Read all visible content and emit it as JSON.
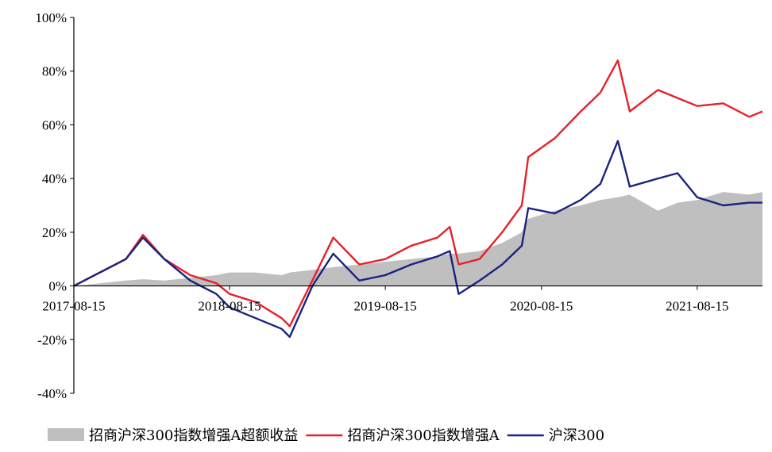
{
  "chart_data": {
    "type": "line",
    "title": "",
    "xlabel": "",
    "ylabel": "",
    "ylim": [
      -40,
      100
    ],
    "y_ticks": [
      -40,
      -20,
      0,
      20,
      40,
      60,
      80,
      100
    ],
    "y_tick_labels": [
      "-40%",
      "-20%",
      "0%",
      "20%",
      "40%",
      "60%",
      "80%",
      "100%"
    ],
    "x_tick_labels": [
      "2017-08-15",
      "2018-08-15",
      "2019-08-15",
      "2020-08-15",
      "2021-08-15"
    ],
    "x_range": [
      "2017-08-15",
      "2022-01-15"
    ],
    "grid": false,
    "legend_position": "bottom",
    "x": [
      "2017-08-15",
      "2017-10-15",
      "2017-12-15",
      "2018-01-24",
      "2018-03-15",
      "2018-05-15",
      "2018-07-15",
      "2018-08-15",
      "2018-10-15",
      "2018-12-15",
      "2019-01-03",
      "2019-02-25",
      "2019-04-15",
      "2019-06-15",
      "2019-08-15",
      "2019-10-15",
      "2019-12-15",
      "2020-01-13",
      "2020-02-03",
      "2020-03-23",
      "2020-05-15",
      "2020-06-30",
      "2020-07-15",
      "2020-09-15",
      "2020-11-15",
      "2020-12-31",
      "2021-02-10",
      "2021-03-10",
      "2021-05-15",
      "2021-06-30",
      "2021-08-15",
      "2021-10-15",
      "2021-12-15",
      "2022-01-15"
    ],
    "series": [
      {
        "name": "招商沪深300指数增强A超额收益",
        "type": "area",
        "color": "#bfbfbf",
        "values": [
          0,
          1,
          2,
          2.5,
          2,
          3,
          4,
          5,
          5,
          4,
          5,
          6,
          7,
          8,
          9,
          10,
          11,
          12,
          12,
          13,
          16,
          20,
          25,
          28,
          30,
          32,
          33,
          34,
          28,
          31,
          32,
          35,
          34,
          35
        ]
      },
      {
        "name": "招商沪深300指数增强A",
        "type": "line",
        "color": "#e8202a",
        "values": [
          0,
          5,
          10,
          19,
          10,
          4,
          1,
          -3,
          -6,
          -12,
          -15,
          2,
          18,
          8,
          10,
          15,
          18,
          22,
          8,
          10,
          20,
          30,
          48,
          55,
          65,
          72,
          84,
          65,
          73,
          70,
          67,
          68,
          63,
          65
        ]
      },
      {
        "name": "沪深300",
        "type": "line",
        "color": "#1a237e",
        "values": [
          0,
          5,
          10,
          18,
          10,
          2,
          -3,
          -8,
          -12,
          -16,
          -19,
          0,
          12,
          2,
          4,
          8,
          11,
          13,
          -3,
          2,
          8,
          15,
          29,
          27,
          32,
          38,
          54,
          37,
          40,
          42,
          33,
          30,
          31,
          31
        ]
      }
    ]
  },
  "colors": {
    "axis": "#000000",
    "excess": "#bfbfbf",
    "fund": "#e8202a",
    "index": "#1a237e"
  }
}
